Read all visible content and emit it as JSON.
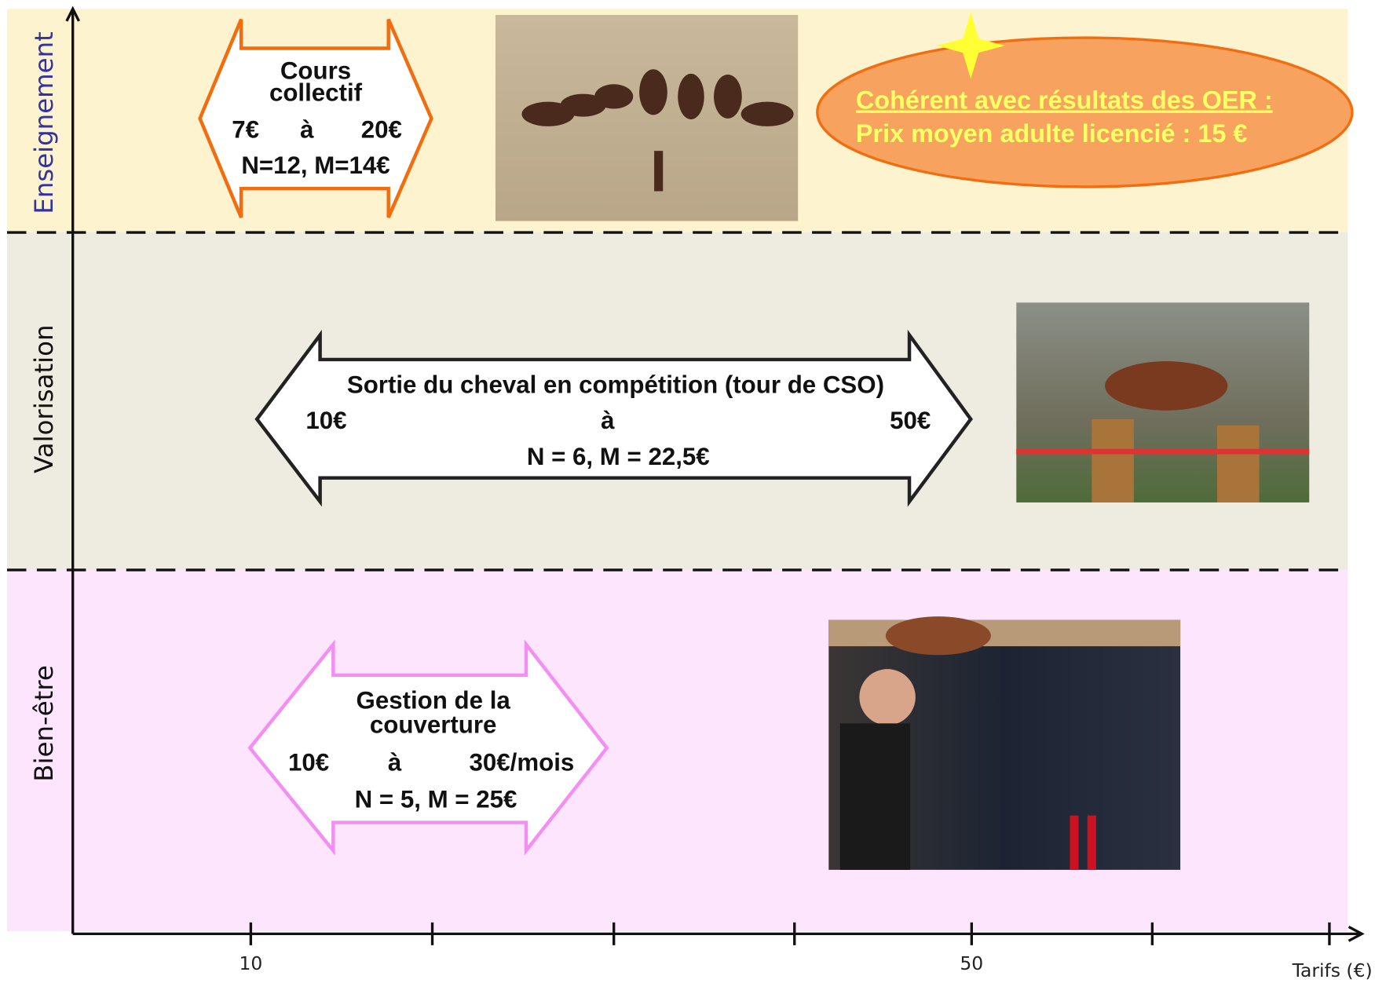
{
  "bands": [
    {
      "label": "Enseignement"
    },
    {
      "label": "Valorisation"
    },
    {
      "label": "Bien-être"
    }
  ],
  "arrows": [
    {
      "title": [
        "Cours",
        "collectif"
      ],
      "from": "7€",
      "to_word": "à",
      "to": "20€",
      "stats": "N=12, M=14€"
    },
    {
      "title": [
        "Sortie du cheval en compétition (tour de CSO)"
      ],
      "from": "10€",
      "to_word": "à",
      "to": "50€",
      "stats": "N = 6, M = 22,5€"
    },
    {
      "title": [
        "Gestion de la",
        "couverture"
      ],
      "from": "10€",
      "to_word": "à",
      "to": "30€/mois",
      "stats": "N = 5, M = 25€"
    }
  ],
  "callout": {
    "lines": [
      "Cohérent avec résultats des OER :",
      "Prix moyen adulte licencié : 15 €"
    ]
  },
  "axis": {
    "ticks": [
      "10",
      "50"
    ],
    "label": "Tarifs (€)"
  }
}
